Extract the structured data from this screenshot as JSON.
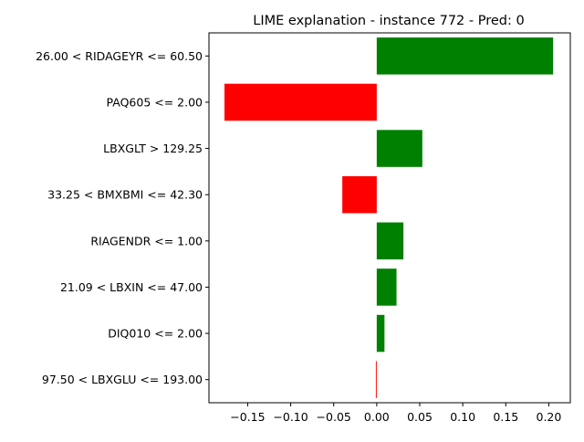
{
  "chart_data": {
    "type": "bar",
    "orientation": "horizontal",
    "title": "LIME explanation - instance 772 - Pred: 0",
    "xlabel": "",
    "ylabel": "",
    "xlim": [
      -0.195,
      0.225
    ],
    "xticks": [
      -0.15,
      -0.1,
      -0.05,
      0.0,
      0.05,
      0.1,
      0.15,
      0.2
    ],
    "xtick_labels": [
      "−0.15",
      "−0.10",
      "−0.05",
      "0.00",
      "0.05",
      "0.10",
      "0.15",
      "0.20"
    ],
    "grid": false,
    "legend": "none",
    "colors": {
      "positive": "#008000",
      "negative": "#ff0000"
    },
    "categories": [
      "26.00 < RIDAGEYR <= 60.50",
      "PAQ605 <= 2.00",
      "LBXGLT > 129.25",
      "33.25 < BMXBMI <= 42.30",
      "RIAGENDR <= 1.00",
      "21.09 < LBXIN <= 47.00",
      "DIQ010 <= 2.00",
      "97.50 < LBXGLU <= 193.00"
    ],
    "values": [
      0.205,
      -0.177,
      0.053,
      -0.04,
      0.031,
      0.023,
      0.009,
      -0.001
    ]
  }
}
